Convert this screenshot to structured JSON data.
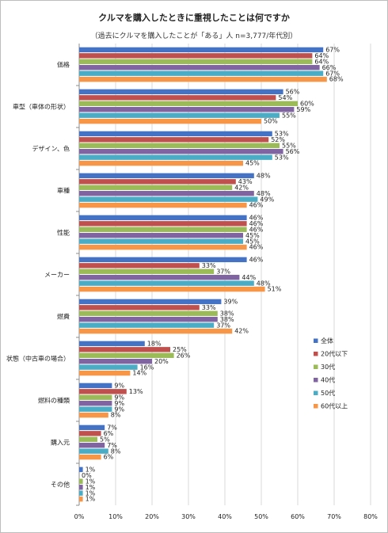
{
  "chart_data": {
    "type": "bar",
    "orientation": "horizontal",
    "title": "クルマを購入したときに重視したことは何ですか",
    "subtitle": "（過去にクルマを購入したことが「ある」人 n=3,777/年代別）",
    "xlim": [
      0,
      80
    ],
    "xticks": [
      "0%",
      "10%",
      "20%",
      "30%",
      "40%",
      "50%",
      "60%",
      "70%",
      "80%"
    ],
    "grid": true,
    "legend_position": "right",
    "categories": [
      "価格",
      "車型（車体の形状）",
      "デザイン、色",
      "車種",
      "性能",
      "メーカー",
      "燃費",
      "状態（中古車の場合）",
      "燃料の種類",
      "購入元",
      "その他"
    ],
    "series": [
      {
        "name": "全体",
        "color": "#4472C4",
        "values": [
          67,
          56,
          53,
          48,
          46,
          46,
          39,
          18,
          9,
          7,
          1
        ]
      },
      {
        "name": "20代以下",
        "color": "#C0504D",
        "values": [
          64,
          54,
          52,
          43,
          46,
          33,
          33,
          25,
          13,
          6,
          0
        ]
      },
      {
        "name": "30代",
        "color": "#9BBB59",
        "values": [
          64,
          60,
          55,
          42,
          46,
          37,
          38,
          26,
          9,
          5,
          1
        ]
      },
      {
        "name": "40代",
        "color": "#8064A2",
        "values": [
          66,
          59,
          56,
          48,
          45,
          44,
          38,
          20,
          9,
          7,
          1
        ]
      },
      {
        "name": "50代",
        "color": "#4BACC6",
        "values": [
          67,
          55,
          53,
          49,
          45,
          48,
          37,
          16,
          9,
          8,
          1
        ]
      },
      {
        "name": "60代以上",
        "color": "#F79646",
        "values": [
          68,
          50,
          45,
          46,
          46,
          51,
          42,
          14,
          8,
          6,
          1
        ]
      }
    ]
  }
}
